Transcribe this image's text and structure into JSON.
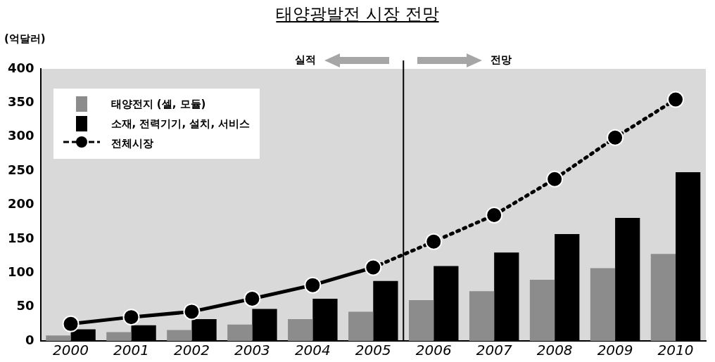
{
  "chart_data": {
    "type": "bar",
    "title": "태양광발전 시장 전망",
    "ylabel": "(억달러)",
    "x": [
      2000,
      2001,
      2002,
      2003,
      2004,
      2005,
      2006,
      2007,
      2008,
      2009,
      2010
    ],
    "xlim": [
      1999.5,
      2010.5
    ],
    "xticks": [
      2000,
      2001,
      2002,
      2003,
      2004,
      2005,
      2006,
      2007,
      2008,
      2009,
      2010
    ],
    "ylim": [
      0,
      400
    ],
    "yticks": [
      0,
      50,
      100,
      150,
      200,
      250,
      300,
      350,
      400
    ],
    "series": [
      {
        "name": "태양전지 (셀, 모듈)",
        "color": "#8c8c8c",
        "values": [
          8,
          13,
          16,
          24,
          32,
          43,
          60,
          73,
          90,
          107,
          128
        ]
      },
      {
        "name": "소재, 전력기기, 설치, 서비스",
        "color": "#000000",
        "values": [
          17,
          23,
          32,
          47,
          62,
          88,
          110,
          130,
          157,
          181,
          248
        ]
      },
      {
        "name": "전체시장",
        "type": "line",
        "color": "#000000",
        "marker": "circle",
        "line_style": "solid",
        "values": [
          25,
          35,
          43,
          62,
          82,
          108,
          146,
          185,
          238,
          299,
          355
        ]
      }
    ],
    "ref_lines": [
      {
        "axis": "x",
        "value": 2005.5,
        "color": "#000000"
      }
    ],
    "annotations": [
      "실적",
      "전망"
    ],
    "grid": false,
    "legend": "top left"
  }
}
